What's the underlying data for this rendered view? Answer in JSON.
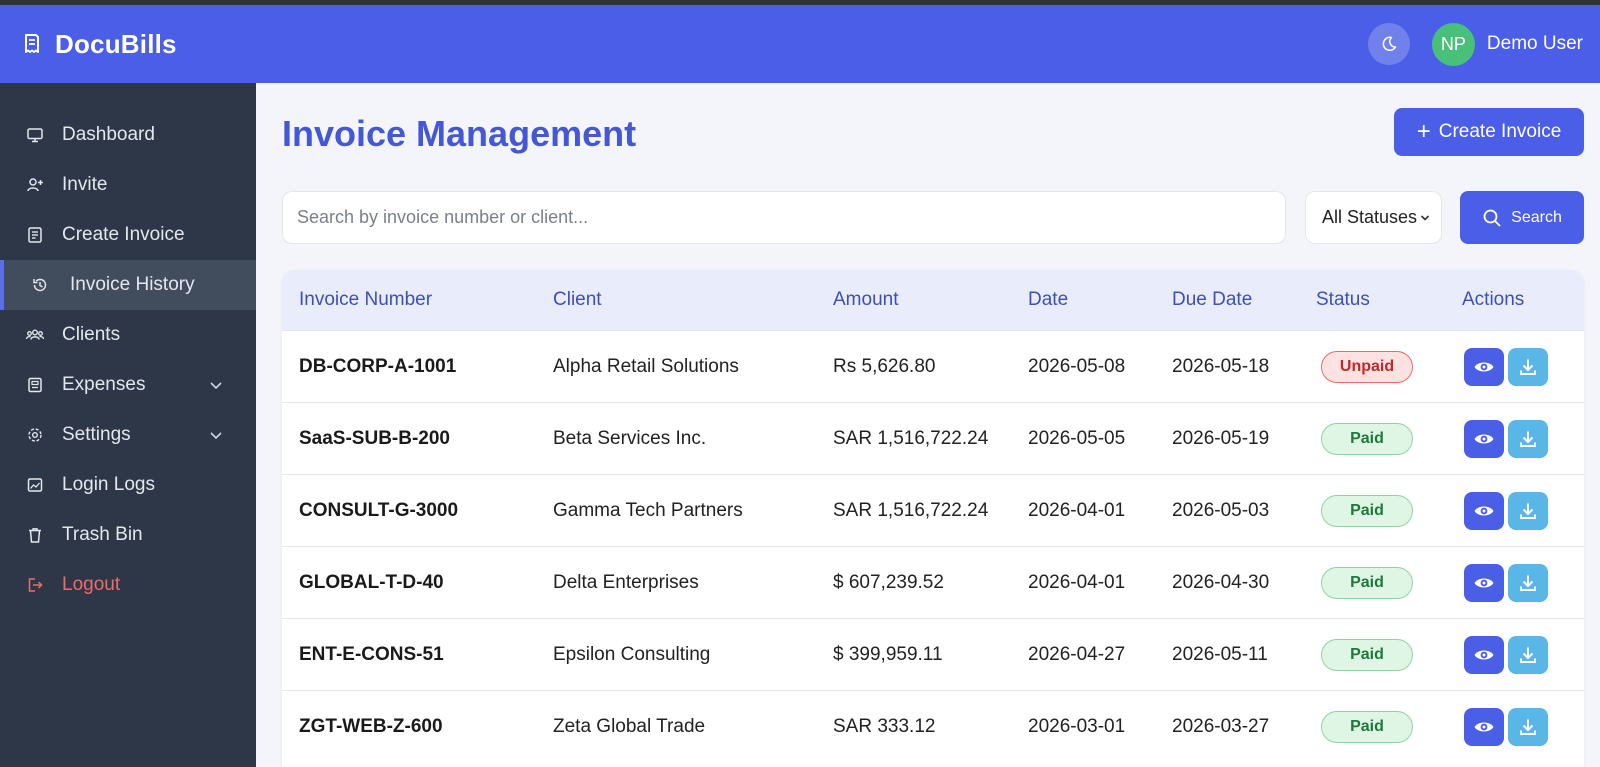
{
  "app": {
    "name": "DocuBills"
  },
  "header": {
    "user_initials": "NP",
    "user_name": "Demo User"
  },
  "sidebar": {
    "items": [
      {
        "label": "Dashboard",
        "icon": "monitor-icon"
      },
      {
        "label": "Invite",
        "icon": "user-plus-icon"
      },
      {
        "label": "Create Invoice",
        "icon": "document-edit-icon"
      },
      {
        "label": "Invoice History",
        "icon": "history-icon",
        "active": true
      },
      {
        "label": "Clients",
        "icon": "users-icon"
      },
      {
        "label": "Expenses",
        "icon": "receipt-icon",
        "expandable": true
      },
      {
        "label": "Settings",
        "icon": "gear-icon",
        "expandable": true
      },
      {
        "label": "Login Logs",
        "icon": "image-log-icon"
      },
      {
        "label": "Trash Bin",
        "icon": "trash-icon"
      },
      {
        "label": "Logout",
        "icon": "logout-icon"
      }
    ]
  },
  "main": {
    "title": "Invoice Management",
    "create_button": "Create Invoice",
    "search": {
      "placeholder": "Search by invoice number or client...",
      "value": ""
    },
    "status_filter": {
      "selected": "All Statuses"
    },
    "search_button": "Search"
  },
  "table": {
    "headers": [
      "Invoice Number",
      "Client",
      "Amount",
      "Date",
      "Due Date",
      "Status",
      "Actions"
    ],
    "rows": [
      {
        "invoice": "DB-CORP-A-1001",
        "client": "Alpha Retail Solutions",
        "amount": "Rs 5,626.80",
        "date": "2026-05-08",
        "due": "2026-05-18",
        "status": "Unpaid"
      },
      {
        "invoice": "SaaS-SUB-B-200",
        "client": "Beta Services Inc.",
        "amount": "SAR 1,516,722.24",
        "date": "2026-05-05",
        "due": "2026-05-19",
        "status": "Paid"
      },
      {
        "invoice": "CONSULT-G-3000",
        "client": "Gamma Tech Partners",
        "amount": "SAR 1,516,722.24",
        "date": "2026-04-01",
        "due": "2026-05-03",
        "status": "Paid"
      },
      {
        "invoice": "GLOBAL-T-D-40",
        "client": "Delta Enterprises",
        "amount": "$ 607,239.52",
        "date": "2026-04-01",
        "due": "2026-04-30",
        "status": "Paid"
      },
      {
        "invoice": "ENT-E-CONS-51",
        "client": "Epsilon Consulting",
        "amount": "$ 399,959.11",
        "date": "2026-04-27",
        "due": "2026-05-11",
        "status": "Paid"
      },
      {
        "invoice": "ZGT-WEB-Z-600",
        "client": "Zeta Global Trade",
        "amount": "SAR 333.12",
        "date": "2026-03-01",
        "due": "2026-03-27",
        "status": "Paid"
      }
    ]
  },
  "colors": {
    "header_bg": "#4a5ee7",
    "sidebar_bg": "#2d3748",
    "title_color": "#4457d5",
    "paid_bg": "#dff6e4",
    "unpaid_bg": "#fde2e2",
    "download_button": "#5bb6e8"
  }
}
